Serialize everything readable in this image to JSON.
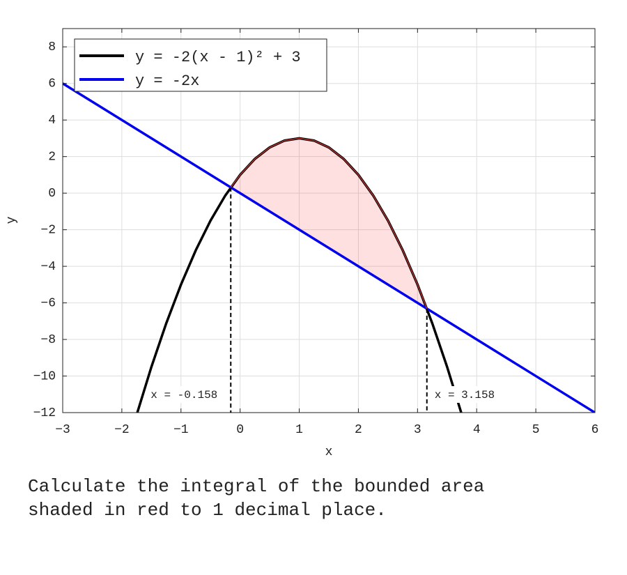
{
  "chart_data": {
    "type": "line",
    "x_label": "x",
    "y_label": "y",
    "xlim": [
      -3,
      6
    ],
    "ylim": [
      -12,
      9
    ],
    "xticks": [
      {
        "value": -3,
        "label": "−3"
      },
      {
        "value": -2,
        "label": "−2"
      },
      {
        "value": -1,
        "label": "−1"
      },
      0,
      1,
      2,
      3,
      4,
      5,
      6
    ],
    "yticks": [
      {
        "value": -12,
        "label": "−12"
      },
      {
        "value": -10,
        "label": "−10"
      },
      {
        "value": -8,
        "label": "−8"
      },
      {
        "value": -6,
        "label": "−6"
      },
      {
        "value": -4,
        "label": "−4"
      },
      {
        "value": -2,
        "label": "−2"
      },
      0,
      2,
      4,
      6,
      8
    ],
    "grid": true,
    "legend": "upper left",
    "series": [
      {
        "name": "y = -2(x - 1)² + 3",
        "color": "#000000",
        "x": [
          -1.75,
          -1.5,
          -1.25,
          -1,
          -0.75,
          -0.5,
          -0.25,
          0,
          0.25,
          0.5,
          0.75,
          1,
          1.25,
          1.5,
          1.75,
          2,
          2.25,
          2.5,
          2.75,
          3,
          3.25,
          3.5,
          3.75
        ],
        "values": [
          -12.125,
          -9.5,
          -7.125,
          -5,
          -3.125,
          -1.5,
          -0.125,
          1,
          1.875,
          2.5,
          2.875,
          3,
          2.875,
          2.5,
          1.875,
          1,
          -0.125,
          -1.5,
          -3.125,
          -5,
          -7.125,
          -9.5,
          -12.125
        ]
      },
      {
        "name": "y = -2x",
        "color": "#0000ee",
        "x": [
          -3,
          6
        ],
        "values": [
          6,
          -12
        ]
      }
    ],
    "shade_color": "#ff0000",
    "annotations": [
      {
        "text": "x = -0.158",
        "x": -0.158,
        "y": 0.316
      },
      {
        "text": "x = 3.158",
        "x": 3.158,
        "y": -6.316
      }
    ]
  },
  "question": [
    "Calculate the integral of the bounded area",
    "shaded in red to 1 decimal place."
  ]
}
